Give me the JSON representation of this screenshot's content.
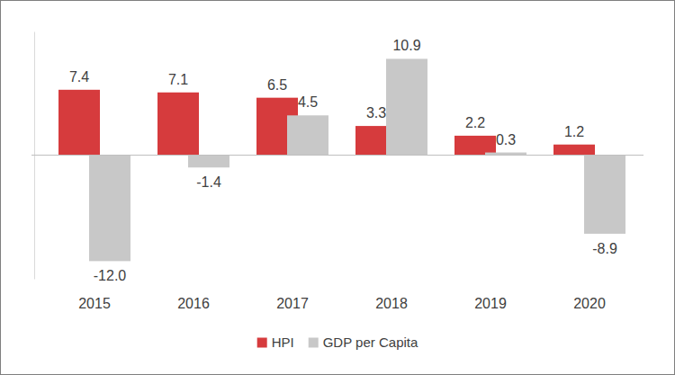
{
  "chart_data": {
    "type": "bar",
    "categories": [
      "2015",
      "2016",
      "2017",
      "2018",
      "2019",
      "2020"
    ],
    "series": [
      {
        "name": "HPI",
        "color": "#d63b3d",
        "values": [
          7.4,
          7.1,
          6.5,
          3.3,
          2.2,
          1.2
        ]
      },
      {
        "name": "GDP per Capita",
        "color": "#c8c8c8",
        "values": [
          -12,
          -1.4,
          4.5,
          10.9,
          0.3,
          -8.9
        ],
        "value_labels": [
          "-12.0",
          "-1.4",
          "4.5",
          "10.9",
          "0.3",
          "-8.9"
        ]
      }
    ],
    "ylim": [
      -14,
      14
    ],
    "tick_labels": "x",
    "data_labels": true,
    "legend": "bottom",
    "grid": false
  }
}
